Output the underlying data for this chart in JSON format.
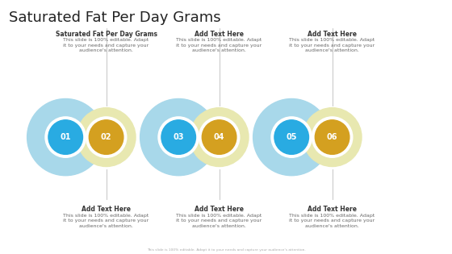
{
  "title": "Saturated Fat Per Day Grams",
  "title_fontsize": 13,
  "background_color": "#ffffff",
  "blue_outer_color": "#a8d8ea",
  "yellow_outer_color": "#e8e8b0",
  "blue_inner_color": "#29abe2",
  "yellow_inner_color": "#d4a020",
  "white_ring_color": "#ffffff",
  "number_color": "#ffffff",
  "top_label_1_title": "Saturated Fat Per Day Grams",
  "top_label_2_title": "Add Text Here",
  "top_label_3_title": "Add Text Here",
  "bottom_label_1_title": "Add Text Here",
  "bottom_label_2_title": "Add Text Here",
  "bottom_label_3_title": "Add Text Here",
  "sub_text": "This slide is 100% editable. Adapt\nit to your needs and capture your\naudience's attention.",
  "footer_text": "This slide is 100% editable. Adapt it to your needs and capture your audience's attention.",
  "line_color": "#bbbbbb",
  "number_fontsize": 7,
  "label_fontsize": 5.5,
  "sub_fontsize": 4.5,
  "title_color": "#333333",
  "text_color": "#666666"
}
